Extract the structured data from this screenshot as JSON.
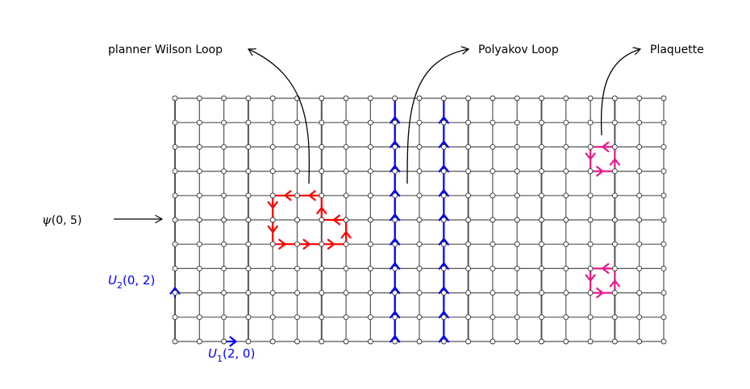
{
  "labels": {
    "wilson_loop": "planner Wilson Loop",
    "polyakov_loop": "Polyakov Loop",
    "plaquette": "Plaquette",
    "psi_name": "ψ",
    "psi_args": "(0, 5)",
    "u2_name": "U",
    "u2_sub": "2",
    "u2_args": "(0, 2)",
    "u1_name": "U",
    "u1_sub": "1",
    "u1_args": "(2, 0)"
  },
  "lattice": {
    "columns": 21,
    "rows": 11
  },
  "colors": {
    "grid": "#555555",
    "node_fill": "#ffffff",
    "wilson": "#ff0000",
    "polyakov": "#0000ff",
    "plaquette": "#e8198b",
    "link": "#0000ff",
    "pointer": "#000000"
  },
  "icons": {
    "node": "open-circle",
    "link_arrow": "arrow-head"
  }
}
